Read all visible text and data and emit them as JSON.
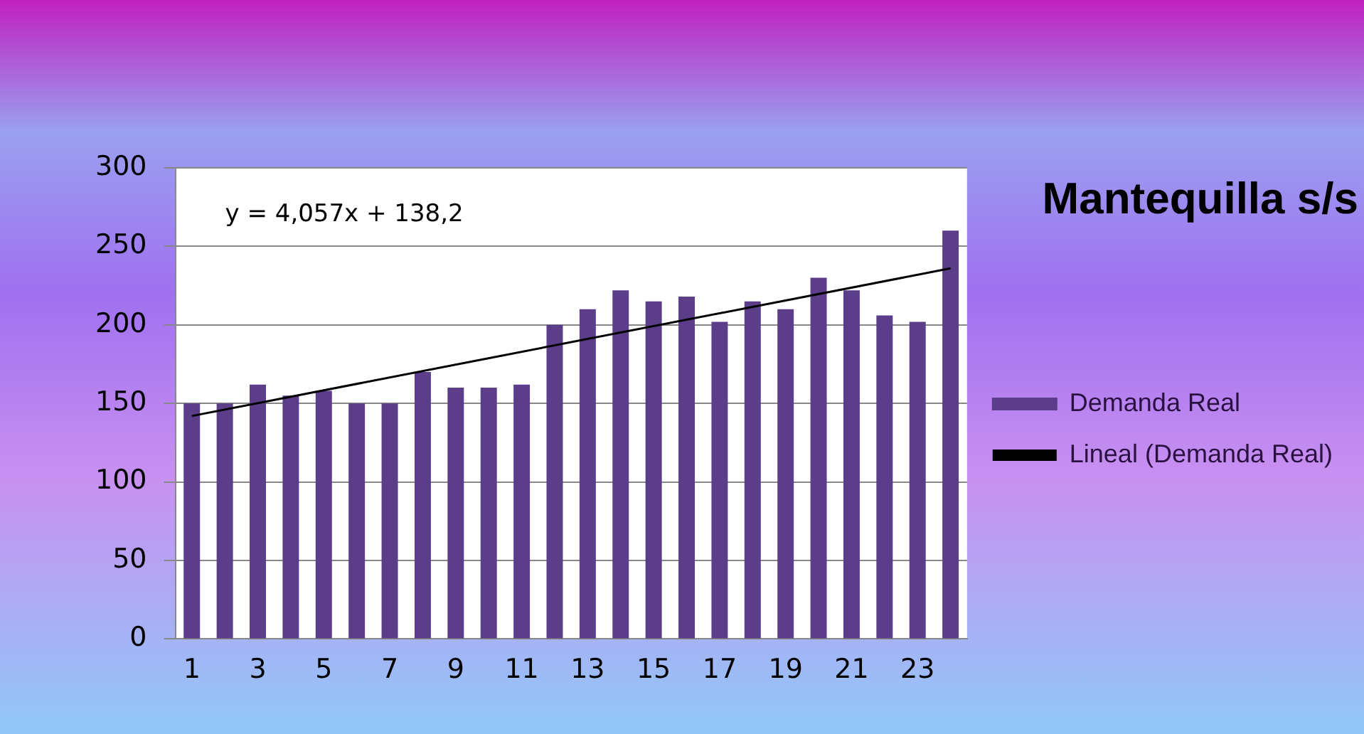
{
  "chart_data": {
    "type": "bar",
    "title": "Mantequilla s/s",
    "x": [
      1,
      2,
      3,
      4,
      5,
      6,
      7,
      8,
      9,
      10,
      11,
      12,
      13,
      14,
      15,
      16,
      17,
      18,
      19,
      20,
      21,
      22,
      23,
      24
    ],
    "xlim": [
      0.5,
      24.5
    ],
    "xticks": [
      1,
      3,
      5,
      7,
      9,
      11,
      13,
      15,
      17,
      19,
      21,
      23
    ],
    "ylim": [
      0,
      300
    ],
    "yticks": [
      0,
      50,
      100,
      150,
      200,
      250,
      300
    ],
    "series": [
      {
        "name": "Demanda Real",
        "color": "#5b3d8a",
        "values": [
          150,
          150,
          162,
          155,
          158,
          150,
          150,
          170,
          160,
          160,
          162,
          200,
          210,
          222,
          215,
          218,
          202,
          215,
          210,
          230,
          222,
          206,
          202,
          260
        ]
      },
      {
        "name": "Lineal (Demanda Real)",
        "type": "line",
        "color": "#000000",
        "x": [
          1,
          24
        ],
        "values": [
          142,
          236
        ]
      }
    ],
    "annotations": [
      "y = 4,057x + 138,2"
    ],
    "grid": "y",
    "legend": "right",
    "marker": "none"
  }
}
